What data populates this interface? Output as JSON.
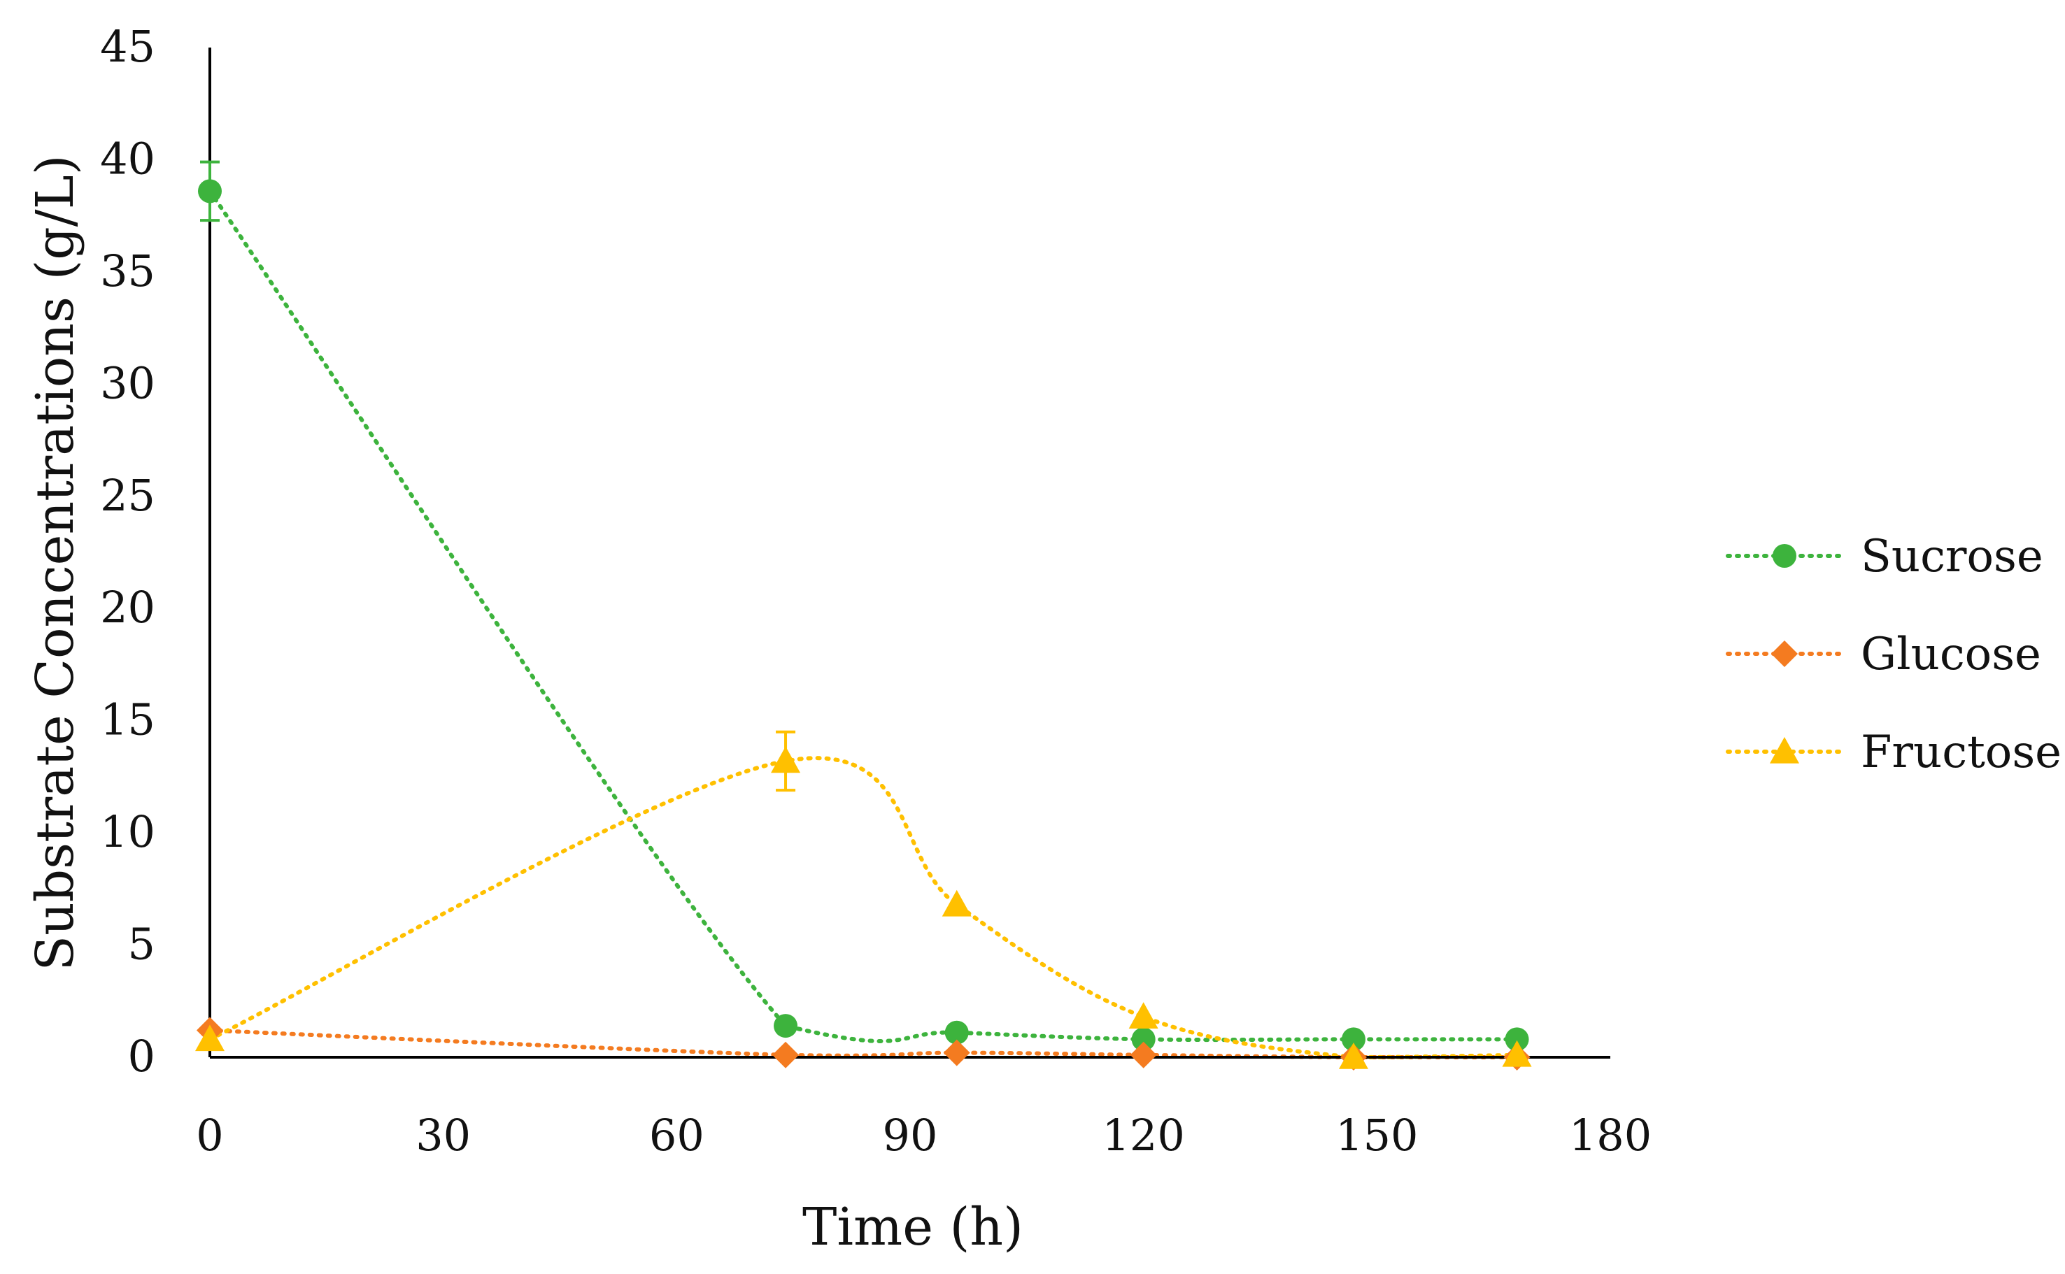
{
  "chart_data": {
    "type": "line",
    "title": "",
    "xlabel": "Time (h)",
    "ylabel": "Substrate Concentrations (g/L)",
    "xlim": [
      0,
      180
    ],
    "ylim": [
      0,
      45
    ],
    "xticks": [
      0,
      30,
      60,
      90,
      120,
      150,
      180
    ],
    "yticks": [
      0,
      5,
      10,
      15,
      20,
      25,
      30,
      35,
      40,
      45
    ],
    "grid": false,
    "legend_position": "right",
    "x": [
      0,
      74,
      96,
      120,
      147,
      168
    ],
    "series": [
      {
        "name": "Sucrose",
        "marker": "circle",
        "color": "#3db33d",
        "values": [
          38.6,
          1.4,
          1.1,
          0.8,
          0.8,
          0.8
        ],
        "errors": [
          1.3,
          0,
          0,
          0,
          0,
          0
        ]
      },
      {
        "name": "Glucose",
        "marker": "diamond",
        "color": "#f47b20",
        "values": [
          1.2,
          0.1,
          0.2,
          0.1,
          0.0,
          0.0
        ],
        "errors": [
          0,
          0,
          0,
          0,
          0,
          0
        ]
      },
      {
        "name": "Fructose",
        "marker": "triangle",
        "color": "#ffc000",
        "values": [
          0.8,
          13.2,
          6.8,
          1.8,
          0.0,
          0.1
        ],
        "errors": [
          0,
          1.3,
          0,
          0,
          0,
          0
        ]
      }
    ]
  }
}
